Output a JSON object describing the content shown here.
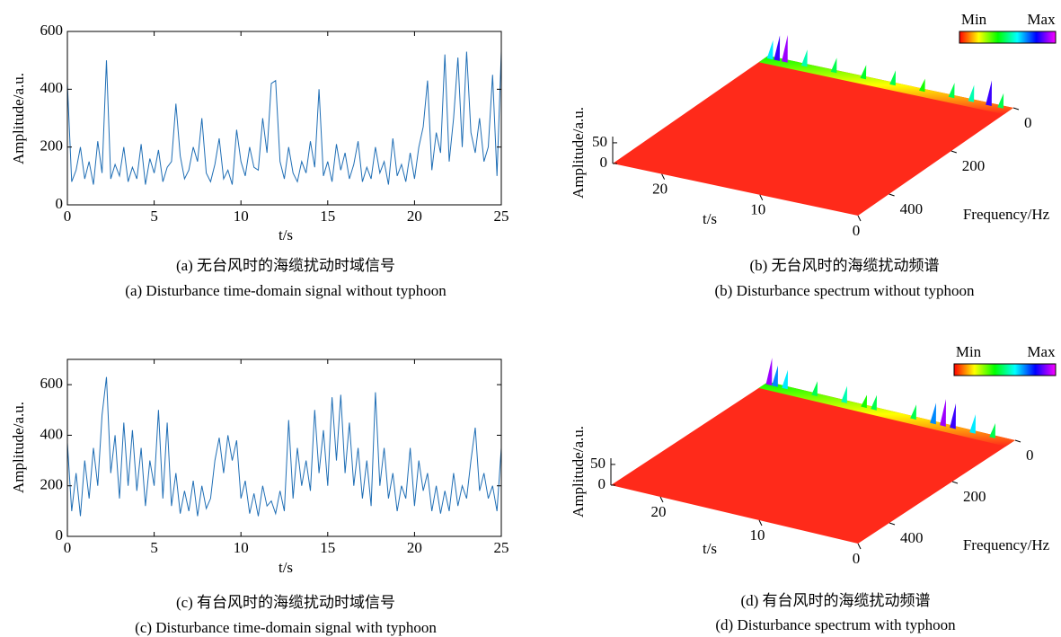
{
  "chart_data": [
    {
      "type": "line",
      "color": "#1f6eb5",
      "xlabel": "t/s",
      "ylabel": "Amplitude/a.u.",
      "captions": [
        "(a) 无台风时的海缆扰动时域信号",
        "(a) Disturbance time-domain signal without typhoon"
      ],
      "xlim": [
        0,
        25
      ],
      "xticks": [
        0,
        5,
        10,
        15,
        20,
        25
      ],
      "ylim": [
        0,
        600
      ],
      "yticks": [
        0,
        200,
        400,
        600
      ],
      "x": [
        0,
        0.25,
        0.5,
        0.75,
        1,
        1.25,
        1.5,
        1.75,
        2,
        2.25,
        2.5,
        2.75,
        3,
        3.25,
        3.5,
        3.75,
        4,
        4.25,
        4.5,
        4.75,
        5,
        5.25,
        5.5,
        5.75,
        6,
        6.25,
        6.5,
        6.75,
        7,
        7.25,
        7.5,
        7.75,
        8,
        8.25,
        8.5,
        8.75,
        9,
        9.25,
        9.5,
        9.75,
        10,
        10.25,
        10.5,
        10.75,
        11,
        11.25,
        11.5,
        11.75,
        12,
        12.25,
        12.5,
        12.75,
        13,
        13.25,
        13.5,
        13.75,
        14,
        14.25,
        14.5,
        14.75,
        15,
        15.25,
        15.5,
        15.75,
        16,
        16.25,
        16.5,
        16.75,
        17,
        17.25,
        17.5,
        17.75,
        18,
        18.25,
        18.5,
        18.75,
        19,
        19.25,
        19.5,
        19.75,
        20,
        20.25,
        20.5,
        20.75,
        21,
        21.25,
        21.5,
        21.75,
        22,
        22.25,
        22.5,
        22.75,
        23,
        23.25,
        23.5,
        23.75,
        24,
        24.25,
        24.5,
        24.75,
        25
      ],
      "values": [
        420,
        80,
        120,
        200,
        90,
        150,
        70,
        220,
        110,
        500,
        90,
        140,
        100,
        200,
        80,
        130,
        90,
        210,
        70,
        160,
        110,
        190,
        80,
        130,
        150,
        350,
        170,
        90,
        120,
        200,
        150,
        300,
        110,
        80,
        140,
        230,
        90,
        120,
        70,
        260,
        150,
        100,
        200,
        130,
        120,
        300,
        180,
        420,
        430,
        150,
        90,
        200,
        110,
        80,
        150,
        110,
        220,
        130,
        400,
        100,
        150,
        80,
        210,
        120,
        180,
        90,
        140,
        220,
        80,
        130,
        90,
        200,
        110,
        150,
        70,
        230,
        100,
        140,
        80,
        180,
        90,
        200,
        270,
        430,
        120,
        250,
        180,
        520,
        150,
        300,
        510,
        200,
        530,
        250,
        180,
        300,
        150,
        200,
        450,
        100,
        530
      ]
    },
    {
      "type": "surface3d",
      "xlabel": "t/s",
      "ylabel": "Frequency/Hz",
      "zlabel": "Amplitude/a.u.",
      "captions": [
        "(b) 无台风时的海缆扰动频谱",
        "(b) Disturbance spectrum without typhoon"
      ],
      "colorbar_labels": [
        "Min",
        "Max"
      ],
      "colormap": [
        "#ff0000",
        "#ffff00",
        "#00ff00",
        "#00ffff",
        "#0000ff",
        "#ff00ff"
      ],
      "surface_color": "#ff2a1a",
      "xlim": [
        0,
        25
      ],
      "xticks": [
        0,
        10,
        20
      ],
      "ylim": [
        0,
        500
      ],
      "yticks": [
        0,
        200,
        400
      ],
      "zlim": [
        0,
        65
      ],
      "zticks": [
        0,
        50
      ],
      "x": [
        24.5,
        23.8,
        23,
        21,
        18,
        15,
        12,
        9,
        6,
        4,
        2.2,
        1
      ],
      "values": [
        40,
        55,
        60,
        35,
        30,
        28,
        30,
        25,
        30,
        35,
        55,
        30
      ]
    },
    {
      "type": "line",
      "color": "#1f6eb5",
      "xlabel": "t/s",
      "ylabel": "Amplitude/a.u.",
      "captions": [
        "(c) 有台风时的海缆扰动时域信号",
        "(c) Disturbance time-domain signal with typhoon"
      ],
      "xlim": [
        0,
        25
      ],
      "xticks": [
        0,
        5,
        10,
        15,
        20,
        25
      ],
      "ylim": [
        0,
        700
      ],
      "yticks": [
        0,
        200,
        400,
        600
      ],
      "x": [
        0,
        0.25,
        0.5,
        0.75,
        1,
        1.25,
        1.5,
        1.75,
        2,
        2.25,
        2.5,
        2.75,
        3,
        3.25,
        3.5,
        3.75,
        4,
        4.25,
        4.5,
        4.75,
        5,
        5.25,
        5.5,
        5.75,
        6,
        6.25,
        6.5,
        6.75,
        7,
        7.25,
        7.5,
        7.75,
        8,
        8.25,
        8.5,
        8.75,
        9,
        9.25,
        9.5,
        9.75,
        10,
        10.25,
        10.5,
        10.75,
        11,
        11.25,
        11.5,
        11.75,
        12,
        12.25,
        12.5,
        12.75,
        13,
        13.25,
        13.5,
        13.75,
        14,
        14.25,
        14.5,
        14.75,
        15,
        15.25,
        15.5,
        15.75,
        16,
        16.25,
        16.5,
        16.75,
        17,
        17.25,
        17.5,
        17.75,
        18,
        18.25,
        18.5,
        18.75,
        19,
        19.25,
        19.5,
        19.75,
        20,
        20.25,
        20.5,
        20.75,
        21,
        21.25,
        21.5,
        21.75,
        22,
        22.25,
        22.5,
        22.75,
        23,
        23.25,
        23.5,
        23.75,
        24,
        24.25,
        24.5,
        24.75,
        25
      ],
      "values": [
        370,
        100,
        250,
        80,
        300,
        150,
        350,
        200,
        480,
        630,
        250,
        400,
        150,
        450,
        200,
        420,
        180,
        350,
        120,
        300,
        200,
        500,
        150,
        450,
        120,
        250,
        90,
        180,
        100,
        220,
        80,
        200,
        110,
        150,
        300,
        390,
        250,
        400,
        300,
        380,
        150,
        220,
        90,
        170,
        80,
        200,
        120,
        140,
        90,
        180,
        100,
        460,
        150,
        350,
        200,
        300,
        180,
        500,
        250,
        420,
        200,
        550,
        300,
        560,
        250,
        450,
        200,
        350,
        150,
        300,
        120,
        570,
        200,
        350,
        150,
        250,
        100,
        200,
        150,
        350,
        120,
        300,
        180,
        250,
        100,
        200,
        90,
        180,
        100,
        250,
        120,
        200,
        150,
        300,
        430,
        180,
        250,
        150,
        200,
        100,
        350
      ]
    },
    {
      "type": "surface3d",
      "xlabel": "t/s",
      "ylabel": "Frequency/Hz",
      "zlabel": "Amplitude/a.u.",
      "captions": [
        "(d) 有台风时的海缆扰动频谱",
        "(d) Disturbance spectrum with typhoon"
      ],
      "colorbar_labels": [
        "Min",
        "Max"
      ],
      "colormap": [
        "#ff0000",
        "#ffff00",
        "#00ff00",
        "#00ffff",
        "#0000ff",
        "#ff00ff"
      ],
      "surface_color": "#ff2a1a",
      "xlim": [
        0,
        25
      ],
      "xticks": [
        0,
        10,
        20
      ],
      "ylim": [
        0,
        500
      ],
      "yticks": [
        0,
        200,
        400
      ],
      "zlim": [
        0,
        65
      ],
      "zticks": [
        0,
        50
      ],
      "x": [
        24.6,
        24,
        23,
        20,
        17,
        15,
        14,
        10,
        8,
        7,
        6,
        4,
        2
      ],
      "values": [
        60,
        45,
        40,
        30,
        35,
        25,
        30,
        30,
        45,
        60,
        55,
        40,
        30
      ]
    }
  ]
}
